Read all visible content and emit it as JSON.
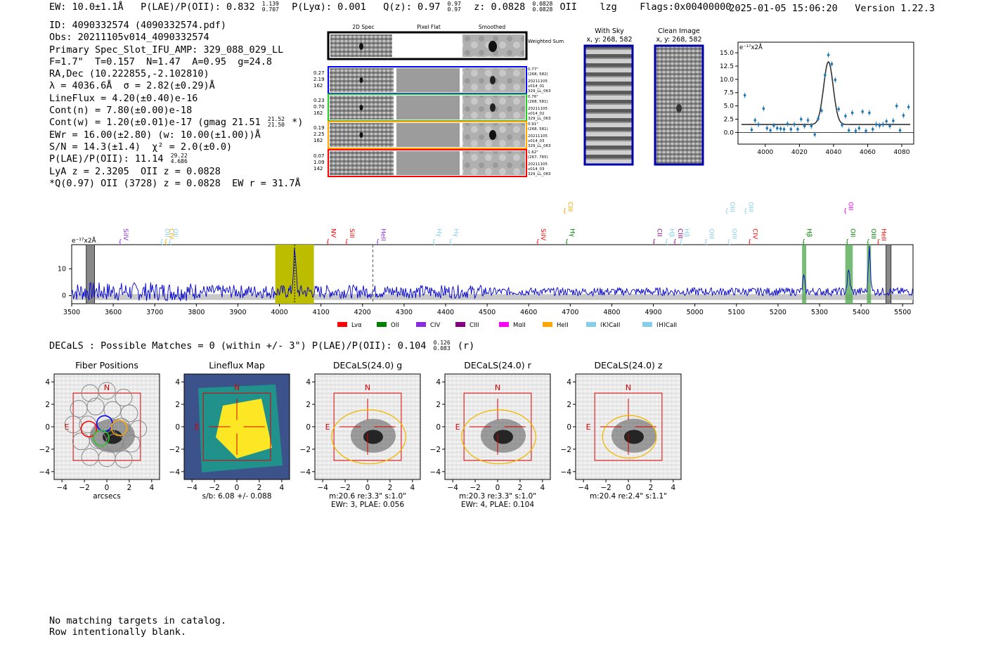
{
  "header": {
    "ew_label": "EW: 10.0±1.1Å",
    "plae_label": "P(LAE)/P(OII): 0.832",
    "plae_hi": "1.139",
    "plae_lo": "0.707",
    "plya_label": "P(Lyα): 0.001",
    "qz_label": "Q(z): 0.97",
    "qz_hi": "0.97",
    "qz_lo": "0.97",
    "z_label": "z: 0.0828",
    "z_hi": "0.0828",
    "z_lo": "0.0828",
    "z_line": "OII",
    "lzg": "lzg",
    "flags": "Flags:0x00400000",
    "timestamp": "2025-01-05 15:06:20",
    "version": "Version 1.22.3"
  },
  "info": {
    "id": "ID: 4090332574 (4090332574.pdf)",
    "obs": "Obs: 20211105v014_4090332574",
    "primary": "Primary Spec_Slot_IFU_AMP: 329_088_029_LL",
    "fit": "F=1.7\"  T=0.157  N=1.47  A=0.95  g=24.8",
    "radec": "RA,Dec (10.222855,-2.102810)",
    "lambda": "λ = 4036.6Å  σ = 2.82(±0.29)Å",
    "lineflux": "LineFlux = 4.20(±0.40)e-16",
    "contn": "Cont(n) = 7.80(±0.00)e-18",
    "contw": "Cont(w) = 1.20(±0.01)e-17 (gmag 21.51",
    "contw_hi": "21.52",
    "contw_lo": "21.50",
    "contw_end": "*)",
    "ewr": "EWr = 16.00(±2.80) (w: 10.00(±1.00))Å",
    "sn": "S/N = 14.3(±1.4)  χ² = 2.0(±0.0)",
    "plae2": "P(LAE)/P(OII): 11.14",
    "plae2_hi": "29.22",
    "plae2_lo": "4.686",
    "lya": "LyA z = 2.3205  OII z = 0.0828",
    "q": "*Q(0.97) OII (3728) z = 0.0828  EW r = 31.7Å"
  },
  "spec_panel": {
    "col_titles": [
      "2D Spec",
      "Pixel Flat",
      "Smoothed"
    ],
    "weighted": "Weighted Sum",
    "rows": [
      {
        "w1": "0.27",
        "w2": "2.19",
        "w3": "162",
        "n1": "0.77\"",
        "n2": "(268, 582)",
        "n3": "20211105",
        "n4": "v014_01",
        "n5": "329_LL_063",
        "color": "#0000ff"
      },
      {
        "w1": "0.23",
        "w2": "0.70",
        "w3": "162",
        "n1": "0.76\"",
        "n2": "(268, 581)",
        "n3": "20211105",
        "n4": "v014_02",
        "n5": "329_LL_063",
        "color": "#22cc22"
      },
      {
        "w1": "0.19",
        "w2": "2.25",
        "w3": "162",
        "n1": "0.91\"",
        "n2": "(268, 581)",
        "n3": "20211105",
        "n4": "v014_03",
        "n5": "329_LL_063",
        "color": "#ffa500"
      },
      {
        "w1": "0.07",
        "w2": "1.09",
        "w3": "142",
        "n1": "1.62\"",
        "n2": "(267, 765)",
        "n3": "20211105",
        "n4": "v014_03",
        "n5": "329_LL_083",
        "color": "#ff0000"
      }
    ]
  },
  "sky": {
    "title": "With Sky",
    "coords": "x, y: 268, 582"
  },
  "clean": {
    "title": "Clean Image",
    "coords": "x, y: 268, 582"
  },
  "zoom_chart": {
    "unit": "e⁻¹⁷x2Å",
    "colors": {
      "points": "#1f77b4",
      "fit": "#333333"
    }
  },
  "main_spectrum": {
    "unit": "e⁻¹⁷x2Å",
    "line_labels": [
      {
        "name": "SiIV",
        "x": 3620,
        "row": "lo",
        "color": "#8a2be2"
      },
      {
        "name": "OII",
        "x": 3720,
        "row": "lo",
        "color": "#87ceeb"
      },
      {
        "name": "CIV",
        "x": 3730,
        "row": "lo",
        "color": "#ffa500"
      },
      {
        "name": "OII",
        "x": 3740,
        "row": "lo",
        "color": "#87ceeb"
      },
      {
        "name": "NV",
        "x": 4120,
        "row": "lo",
        "color": "#ff0000"
      },
      {
        "name": "SiII",
        "x": 4165,
        "row": "lo",
        "color": "#ff0000"
      },
      {
        "name": "HeII",
        "x": 4240,
        "row": "lo",
        "color": "#8a2be2"
      },
      {
        "name": "Hγ",
        "x": 4375,
        "row": "lo",
        "color": "#87ceeb"
      },
      {
        "name": "Hγ",
        "x": 4415,
        "row": "lo",
        "color": "#87ceeb"
      },
      {
        "name": "SiIV",
        "x": 4625,
        "row": "lo",
        "color": "#ff0000"
      },
      {
        "name": "CIII",
        "x": 4690,
        "row": "hi",
        "color": "#ffa500"
      },
      {
        "name": "Hγ",
        "x": 4695,
        "row": "lo",
        "color": "#008000"
      },
      {
        "name": "CII",
        "x": 4905,
        "row": "lo",
        "color": "#8b008b"
      },
      {
        "name": "Hβ",
        "x": 4935,
        "row": "lo",
        "color": "#87ceeb"
      },
      {
        "name": "CIII",
        "x": 4955,
        "row": "lo",
        "color": "#8b008b"
      },
      {
        "name": "Hβ",
        "x": 4970,
        "row": "lo",
        "color": "#87ceeb"
      },
      {
        "name": "OIII",
        "x": 5030,
        "row": "lo",
        "color": "#87ceeb"
      },
      {
        "name": "OIII",
        "x": 5080,
        "row": "hi",
        "color": "#87ceeb"
      },
      {
        "name": "OIII",
        "x": 5085,
        "row": "lo",
        "color": "#87ceeb"
      },
      {
        "name": "OIII",
        "x": 5125,
        "row": "hi",
        "color": "#87ceeb"
      },
      {
        "name": "CIV",
        "x": 5135,
        "row": "lo",
        "color": "#ff0000"
      },
      {
        "name": "Hβ",
        "x": 5265,
        "row": "lo",
        "color": "#008000"
      },
      {
        "name": "OII",
        "x": 5365,
        "row": "hi",
        "color": "#ff00ff"
      },
      {
        "name": "OII",
        "x": 5370,
        "row": "lo",
        "color": "#008000"
      },
      {
        "name": "OIII",
        "x": 5420,
        "row": "lo",
        "color": "#008000"
      },
      {
        "name": "HeII",
        "x": 5445,
        "row": "lo",
        "color": "#ff0000"
      }
    ],
    "legend": [
      {
        "label": "Lyα",
        "color": "#ff0000"
      },
      {
        "label": "OII",
        "color": "#008000"
      },
      {
        "label": "CIV",
        "color": "#8a2be2"
      },
      {
        "label": "CIII",
        "color": "#800080"
      },
      {
        "label": "MgII",
        "color": "#ff00ff"
      },
      {
        "label": "HeII",
        "color": "#ffa500"
      },
      {
        "label": "(K)CaII",
        "color": "#87ceeb"
      },
      {
        "label": "(H)CaII",
        "color": "#87ceeb"
      }
    ]
  },
  "decals": {
    "line": "DECaLS : Possible Matches = 0 (within +/- 3\")  P(LAE)/P(OII): 0.104",
    "hi": "0.126",
    "lo": "0.083",
    "band": "(r)"
  },
  "cutouts": [
    {
      "title": "Fiber Positions",
      "cap1": "arcsecs",
      "cap2": ""
    },
    {
      "title": "Lineflux Map",
      "cap1": "s/b: 6.08 +/- 0.088",
      "cap2": ""
    },
    {
      "title": "DECaLS(24.0) g",
      "cap1": "m:20.6  re:3.3\"  s:1.0\"",
      "cap2": "EWr: 3, PLAE: 0.056"
    },
    {
      "title": "DECaLS(24.0) r",
      "cap1": "m:20.3  re:3.3\"  s:1.0\"",
      "cap2": "EWr: 4, PLAE: 0.104"
    },
    {
      "title": "DECaLS(24.0) z",
      "cap1": "m:20.4  re:2.4\"  s:1.1\"",
      "cap2": ""
    }
  ],
  "compass": {
    "n": "N",
    "e": "E"
  },
  "footer": {
    "line1": "No matching targets in catalog.",
    "line2": "Row intentionally blank."
  },
  "chart_data": [
    {
      "type": "scatter",
      "title": "",
      "xlabel": "",
      "ylabel": "e-17x2Å",
      "xlim": [
        3984,
        4087
      ],
      "ylim": [
        -2.2,
        17
      ],
      "xticks": [
        4000,
        4020,
        4040,
        4060,
        4080
      ],
      "yticks": [
        0.0,
        2.5,
        5.0,
        7.5,
        10.0,
        12.5,
        15.0
      ],
      "points": [
        [
          3988,
          7.0
        ],
        [
          3992,
          0.5
        ],
        [
          3994,
          2.3
        ],
        [
          3996,
          1.5
        ],
        [
          3999,
          4.5
        ],
        [
          4001,
          0.8
        ],
        [
          4003,
          0.4
        ],
        [
          4005,
          1.3
        ],
        [
          4007,
          0.8
        ],
        [
          4009,
          0.7
        ],
        [
          4011,
          0.6
        ],
        [
          4013,
          1.6
        ],
        [
          4015,
          0.6
        ],
        [
          4017,
          1.5
        ],
        [
          4019,
          0.6
        ],
        [
          4021,
          2.5
        ],
        [
          4023,
          1.2
        ],
        [
          4025,
          2.3
        ],
        [
          4027,
          1.2
        ],
        [
          4029,
          -0.4
        ],
        [
          4031,
          2.6
        ],
        [
          4033,
          4.1
        ],
        [
          4035,
          10.8
        ],
        [
          4037,
          14.6
        ],
        [
          4039,
          12.9
        ],
        [
          4041,
          9.9
        ],
        [
          4043,
          4.4
        ],
        [
          4045,
          1.4
        ],
        [
          4047,
          3.1
        ],
        [
          4049,
          0.4
        ],
        [
          4051,
          3.7
        ],
        [
          4053,
          0.3
        ],
        [
          4055,
          0.8
        ],
        [
          4057,
          3.9
        ],
        [
          4059,
          0.3
        ],
        [
          4061,
          3.7
        ],
        [
          4063,
          0.6
        ],
        [
          4065,
          1.5
        ],
        [
          4067,
          1.3
        ],
        [
          4069,
          1.5
        ],
        [
          4071,
          2.1
        ],
        [
          4073,
          1.2
        ],
        [
          4075,
          2.2
        ],
        [
          4077,
          5.0
        ],
        [
          4079,
          0.4
        ],
        [
          4081,
          3.2
        ],
        [
          4084,
          4.8
        ]
      ],
      "fit_center": 4037,
      "fit_sigma": 2.8,
      "fit_amp": 11.8,
      "fit_cont": 1.5
    },
    {
      "type": "line",
      "title": "",
      "xlabel": "",
      "ylabel": "e-17x2Å",
      "xlim": [
        3500,
        5525
      ],
      "ylim": [
        -3,
        19
      ],
      "xticks": [
        3500,
        3600,
        3700,
        3800,
        3900,
        4000,
        4100,
        4200,
        4300,
        4400,
        4500,
        4600,
        4700,
        4800,
        4900,
        5000,
        5100,
        5200,
        5300,
        5400,
        5500
      ],
      "yticks": [
        0,
        10
      ],
      "emission_lines": [
        {
          "center": 4036.6,
          "peak": 14.5,
          "width": 3
        },
        {
          "center": 5262,
          "peak": 5.5,
          "width": 2.5
        },
        {
          "center": 5370,
          "peak": 7.5,
          "width": 3
        },
        {
          "center": 5420,
          "peak": 17,
          "width": 2.5
        }
      ],
      "highlight_region": [
        3990,
        4083
      ],
      "dashed_line": 4225,
      "hatched_bands": [
        [
          3535,
          3555
        ],
        [
          5460,
          5472
        ]
      ],
      "green_bands": [
        [
          5258,
          5268
        ],
        [
          5362,
          5380
        ],
        [
          5414,
          5424
        ]
      ]
    }
  ]
}
